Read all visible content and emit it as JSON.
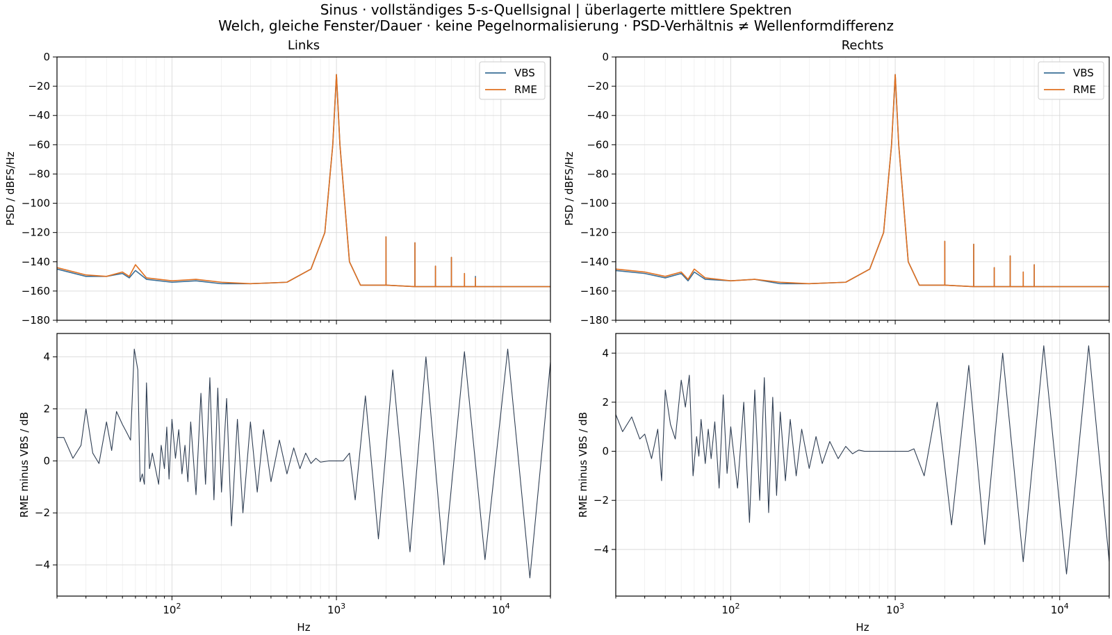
{
  "figure": {
    "title_line1": "Sinus · vollständiges 5-s-Quellsignal | überlagerte mittlere Spektren",
    "title_line2": "Welch, gleiche Fenster/Dauer · keine Pegelnormalisierung · PSD-Verhältnis ≠ Wellenformdifferenz"
  },
  "colors": {
    "vbs": "#3a6e96",
    "rme": "#e07020",
    "diff": "#2e3d52"
  },
  "chart_data": [
    {
      "id": "psd-left",
      "type": "line",
      "title": "Links",
      "xlabel": "",
      "ylabel": "PSD / dBFS/Hz",
      "xscale": "log",
      "xlim": [
        20,
        20000
      ],
      "ylim": [
        -180,
        0
      ],
      "yticks": [
        0,
        -20,
        -40,
        -60,
        -80,
        -100,
        -120,
        -140,
        -160,
        -180
      ],
      "ytick_labels": [
        "0",
        "−20",
        "−40",
        "−60",
        "−80",
        "−100",
        "−120",
        "−140",
        "−160",
        "−180"
      ],
      "xticks": [
        100,
        1000,
        10000
      ],
      "grid": true,
      "legend": "top-right",
      "series": [
        {
          "name": "VBS",
          "color": "#3a6e96",
          "x": [
            20,
            30,
            40,
            50,
            55,
            60,
            70,
            100,
            140,
            200,
            300,
            500,
            700,
            850,
            950,
            1000,
            1050,
            1200,
            1400,
            2000,
            2001,
            2002,
            3000,
            3001,
            3002,
            4000,
            4001,
            4002,
            5000,
            5001,
            5002,
            6000,
            6001,
            6002,
            7000,
            7001,
            7002,
            10000,
            20000
          ],
          "y": [
            -145,
            -150,
            -150,
            -148,
            -151,
            -146,
            -152,
            -154,
            -153,
            -155,
            -155,
            -154,
            -145,
            -120,
            -60,
            -12,
            -60,
            -140,
            -156,
            -156,
            -123,
            -156,
            -157,
            -127,
            -157,
            -157,
            -143,
            -157,
            -157,
            -137,
            -157,
            -157,
            -148,
            -157,
            -157,
            -150,
            -157,
            -157,
            -157
          ]
        },
        {
          "name": "RME",
          "color": "#e07020",
          "x": [
            20,
            30,
            40,
            50,
            55,
            60,
            70,
            100,
            140,
            200,
            300,
            500,
            700,
            850,
            950,
            1000,
            1050,
            1200,
            1400,
            2000,
            2001,
            2002,
            3000,
            3001,
            3002,
            4000,
            4001,
            4002,
            5000,
            5001,
            5002,
            6000,
            6001,
            6002,
            7000,
            7001,
            7002,
            10000,
            20000
          ],
          "y": [
            -144,
            -149,
            -150,
            -147,
            -150,
            -142,
            -151,
            -153,
            -152,
            -154,
            -155,
            -154,
            -145,
            -120,
            -60,
            -12,
            -60,
            -140,
            -156,
            -156,
            -123,
            -156,
            -157,
            -127,
            -157,
            -157,
            -143,
            -157,
            -157,
            -137,
            -157,
            -157,
            -148,
            -157,
            -157,
            -151,
            -157,
            -157,
            -157
          ]
        }
      ]
    },
    {
      "id": "psd-right",
      "type": "line",
      "title": "Rechts",
      "xlabel": "",
      "ylabel": "PSD / dBFS/Hz",
      "xscale": "log",
      "xlim": [
        20,
        20000
      ],
      "ylim": [
        -180,
        0
      ],
      "yticks": [
        0,
        -20,
        -40,
        -60,
        -80,
        -100,
        -120,
        -140,
        -160,
        -180
      ],
      "ytick_labels": [
        "0",
        "−20",
        "−40",
        "−60",
        "−80",
        "−100",
        "−120",
        "−140",
        "−160",
        "−180"
      ],
      "xticks": [
        100,
        1000,
        10000
      ],
      "grid": true,
      "legend": "top-right",
      "series": [
        {
          "name": "VBS",
          "color": "#3a6e96",
          "x": [
            20,
            30,
            40,
            50,
            55,
            60,
            70,
            100,
            140,
            200,
            300,
            500,
            700,
            850,
            950,
            1000,
            1050,
            1200,
            1400,
            2000,
            2001,
            2002,
            3000,
            3001,
            3002,
            4000,
            4001,
            4002,
            5000,
            5001,
            5002,
            6000,
            6001,
            6002,
            7000,
            7001,
            7002,
            10000,
            20000
          ],
          "y": [
            -146,
            -148,
            -151,
            -148,
            -153,
            -147,
            -152,
            -153,
            -152,
            -155,
            -155,
            -154,
            -145,
            -120,
            -60,
            -12,
            -60,
            -140,
            -156,
            -156,
            -126,
            -156,
            -157,
            -128,
            -157,
            -157,
            -144,
            -157,
            -157,
            -136,
            -157,
            -157,
            -147,
            -157,
            -157,
            -142,
            -157,
            -157,
            -157
          ]
        },
        {
          "name": "RME",
          "color": "#e07020",
          "x": [
            20,
            30,
            40,
            50,
            55,
            60,
            70,
            100,
            140,
            200,
            300,
            500,
            700,
            850,
            950,
            1000,
            1050,
            1200,
            1400,
            2000,
            2001,
            2002,
            3000,
            3001,
            3002,
            4000,
            4001,
            4002,
            5000,
            5001,
            5002,
            6000,
            6001,
            6002,
            7000,
            7001,
            7002,
            10000,
            20000
          ],
          "y": [
            -145,
            -147,
            -150,
            -147,
            -152,
            -145,
            -151,
            -153,
            -152,
            -154,
            -155,
            -154,
            -145,
            -120,
            -60,
            -12,
            -60,
            -140,
            -156,
            -156,
            -126,
            -156,
            -157,
            -128,
            -157,
            -157,
            -144,
            -157,
            -157,
            -136,
            -157,
            -157,
            -147,
            -157,
            -157,
            -142,
            -157,
            -157,
            -157
          ]
        }
      ]
    },
    {
      "id": "diff-left",
      "type": "line",
      "title": "",
      "xlabel": "Hz",
      "ylabel": "RME minus VBS / dB",
      "xscale": "log",
      "xlim": [
        20,
        20000
      ],
      "ylim": [
        -5.2,
        4.9
      ],
      "yticks": [
        4,
        2,
        0,
        -2,
        -4
      ],
      "ytick_labels": [
        "4",
        "2",
        "0",
        "−2",
        "−4"
      ],
      "xticks": [
        100,
        1000,
        10000
      ],
      "grid": true,
      "legend": "none",
      "series": [
        {
          "name": "",
          "color": "#2e3d52",
          "x": [
            20,
            22,
            25,
            28,
            30,
            33,
            36,
            40,
            43,
            46,
            50,
            53,
            56,
            59,
            62,
            64,
            66,
            68,
            70,
            73,
            76,
            80,
            83,
            86,
            90,
            93,
            96,
            100,
            105,
            110,
            115,
            120,
            125,
            130,
            140,
            150,
            160,
            170,
            180,
            190,
            200,
            215,
            230,
            250,
            270,
            300,
            330,
            360,
            400,
            450,
            500,
            550,
            600,
            650,
            700,
            750,
            800,
            900,
            1000,
            1100,
            1200,
            1300,
            1500,
            1800,
            2200,
            2800,
            3500,
            4500,
            6000,
            8000,
            11000,
            15000,
            20000
          ],
          "y": [
            0.9,
            0.9,
            0.1,
            0.6,
            2.0,
            0.3,
            -0.1,
            1.5,
            0.4,
            1.9,
            1.4,
            1.1,
            0.8,
            4.3,
            3.5,
            -0.8,
            -0.5,
            -0.9,
            3.0,
            -0.3,
            0.3,
            -0.4,
            -0.9,
            0.6,
            -0.3,
            1.3,
            -0.7,
            1.6,
            0.1,
            1.2,
            -0.5,
            0.6,
            -0.8,
            1.5,
            -1.3,
            2.6,
            -0.9,
            3.2,
            -1.5,
            2.8,
            -1.2,
            2.4,
            -2.5,
            1.6,
            -2.0,
            1.5,
            -1.2,
            1.2,
            -0.8,
            0.8,
            -0.5,
            0.5,
            -0.3,
            0.3,
            -0.1,
            0.1,
            -0.05,
            0.0,
            0.0,
            0.0,
            0.3,
            -1.5,
            2.5,
            -3.0,
            3.5,
            -3.5,
            4.0,
            -4.0,
            4.2,
            -3.8,
            4.3,
            -4.5,
            3.8
          ]
        }
      ]
    },
    {
      "id": "diff-right",
      "type": "line",
      "title": "",
      "xlabel": "Hz",
      "ylabel": "RME minus VBS / dB",
      "xscale": "log",
      "xlim": [
        20,
        20000
      ],
      "ylim": [
        -5.9,
        4.8
      ],
      "yticks": [
        4,
        2,
        0,
        -2,
        -4
      ],
      "ytick_labels": [
        "4",
        "2",
        "0",
        "−2",
        "−4"
      ],
      "xticks": [
        100,
        1000,
        10000
      ],
      "grid": true,
      "legend": "none",
      "series": [
        {
          "name": "",
          "color": "#2e3d52",
          "x": [
            20,
            22,
            25,
            28,
            30,
            33,
            36,
            38,
            40,
            43,
            46,
            50,
            53,
            56,
            59,
            62,
            64,
            66,
            70,
            73,
            76,
            80,
            85,
            90,
            95,
            100,
            110,
            120,
            130,
            140,
            150,
            160,
            170,
            180,
            190,
            200,
            215,
            230,
            250,
            270,
            300,
            330,
            360,
            400,
            450,
            500,
            550,
            600,
            650,
            700,
            750,
            800,
            900,
            1000,
            1100,
            1200,
            1300,
            1500,
            1800,
            2200,
            2800,
            3500,
            4500,
            6000,
            8000,
            11000,
            15000,
            20000
          ],
          "y": [
            1.5,
            0.8,
            1.4,
            0.5,
            0.7,
            -0.3,
            0.9,
            -1.2,
            2.5,
            1.1,
            0.5,
            2.9,
            1.8,
            3.1,
            -1.0,
            0.6,
            -0.2,
            1.3,
            -0.5,
            0.9,
            -0.3,
            1.2,
            -1.5,
            2.3,
            -0.9,
            1.0,
            -1.5,
            2.0,
            -2.9,
            2.5,
            -2.0,
            3.0,
            -2.5,
            2.2,
            -1.8,
            1.6,
            -1.2,
            1.3,
            -1.0,
            0.9,
            -0.7,
            0.6,
            -0.5,
            0.4,
            -0.3,
            0.2,
            -0.1,
            0.05,
            0.0,
            0.0,
            0.0,
            0.0,
            0.0,
            0.0,
            0.0,
            0.0,
            0.1,
            -1.0,
            2.0,
            -3.0,
            3.5,
            -3.8,
            4.0,
            -4.5,
            4.3,
            -5.0,
            4.3,
            -4.5
          ]
        }
      ]
    }
  ]
}
